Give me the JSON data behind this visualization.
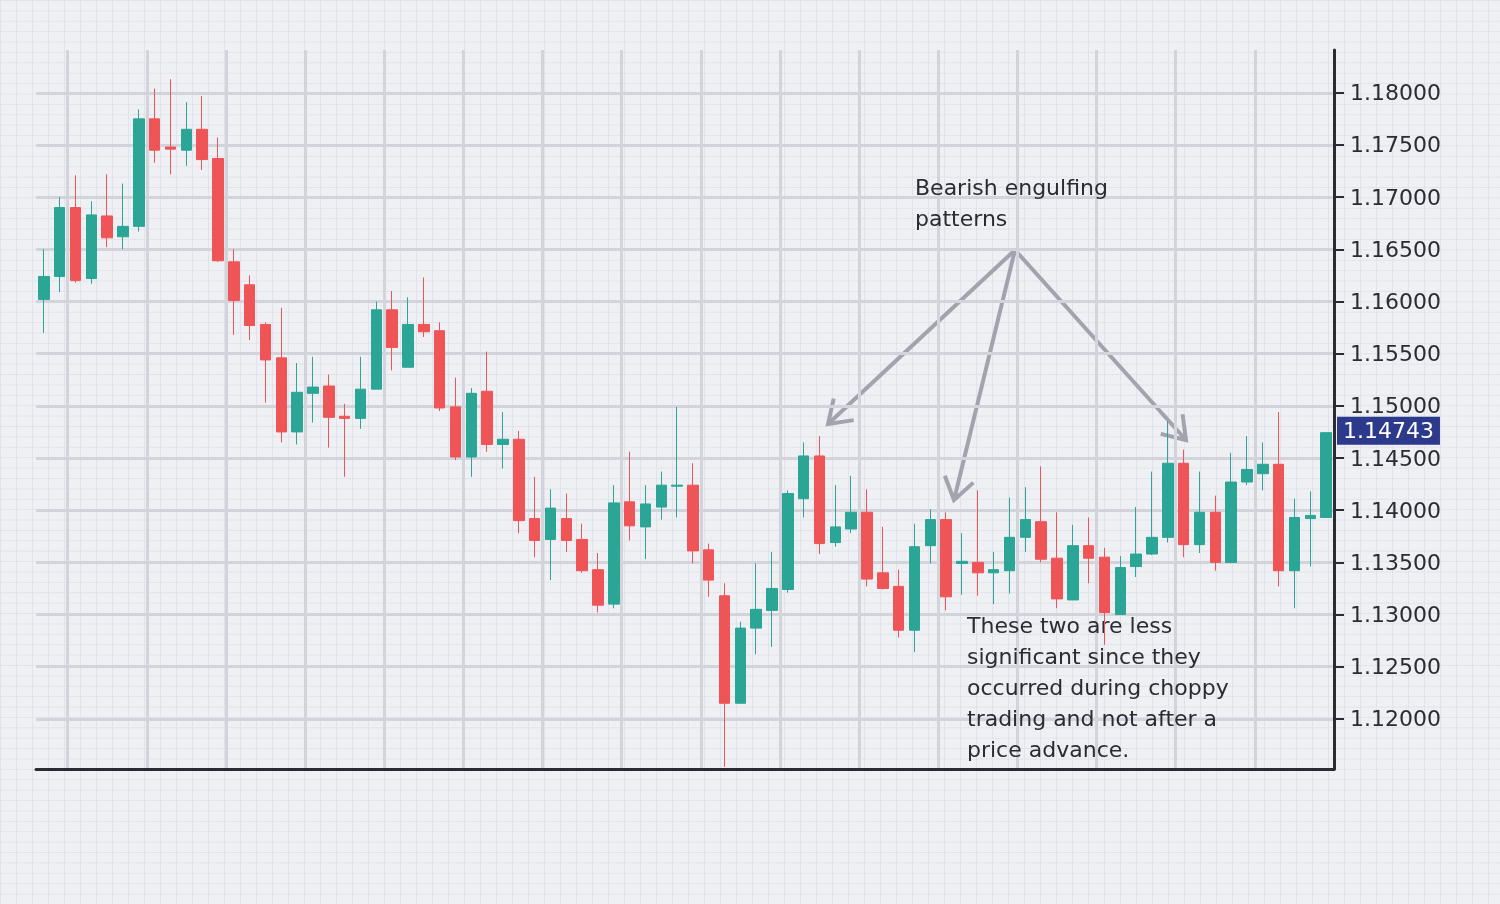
{
  "chart_data": {
    "type": "candlestick",
    "categories": [
      null,
      null,
      null,
      null,
      null,
      null,
      null,
      null,
      null,
      null,
      null,
      null,
      null,
      null,
      null,
      null,
      null,
      null,
      null,
      null,
      null,
      null,
      null,
      null,
      null,
      null,
      null,
      null,
      null,
      null,
      null,
      null,
      null,
      null,
      null,
      null,
      null,
      null,
      null,
      null,
      null,
      null,
      null,
      null,
      null,
      null,
      null,
      null,
      null,
      null,
      null,
      null,
      null,
      null,
      null,
      null,
      null,
      null,
      null,
      null,
      null,
      null,
      null,
      null,
      null,
      null,
      null,
      null,
      null,
      null,
      null,
      null,
      null,
      null,
      null,
      null,
      null,
      null,
      null,
      null,
      null,
      null
    ],
    "ohlc": [
      [
        1.1602,
        1.165,
        1.157,
        1.1624
      ],
      [
        1.1624,
        1.17,
        1.1609,
        1.169
      ],
      [
        1.169,
        1.1721,
        1.1618,
        1.162
      ],
      [
        1.1622,
        1.1696,
        1.1617,
        1.1683
      ],
      [
        1.1682,
        1.1722,
        1.1652,
        1.1661
      ],
      [
        1.1662,
        1.1713,
        1.165,
        1.1672
      ],
      [
        1.1672,
        1.1784,
        1.1667,
        1.1775
      ],
      [
        1.1775,
        1.1804,
        1.1733,
        1.1745
      ],
      [
        1.1748,
        1.1813,
        1.1722,
        1.1746
      ],
      [
        1.1745,
        1.1791,
        1.173,
        1.1765
      ],
      [
        1.1765,
        1.1797,
        1.1726,
        1.1736
      ],
      [
        1.1737,
        1.1757,
        1.1638,
        1.1639
      ],
      [
        1.1638,
        1.165,
        1.1568,
        1.1601
      ],
      [
        1.1616,
        1.1625,
        1.1563,
        1.1577
      ],
      [
        1.1578,
        1.158,
        1.1503,
        1.1544
      ],
      [
        1.1546,
        1.1594,
        1.1465,
        1.1475
      ],
      [
        1.1475,
        1.1541,
        1.1463,
        1.1513
      ],
      [
        1.1512,
        1.1547,
        1.1484,
        1.1518
      ],
      [
        1.1519,
        1.153,
        1.146,
        1.1489
      ],
      [
        1.149,
        1.1502,
        1.1432,
        1.1488
      ],
      [
        1.1488,
        1.1547,
        1.1478,
        1.1516
      ],
      [
        1.1516,
        1.16,
        1.1516,
        1.1592
      ],
      [
        1.1592,
        1.161,
        1.1534,
        1.1556
      ],
      [
        1.1537,
        1.1604,
        1.1537,
        1.1578
      ],
      [
        1.1578,
        1.1623,
        1.1566,
        1.1571
      ],
      [
        1.1572,
        1.158,
        1.1495,
        1.1498
      ],
      [
        1.1499,
        1.1527,
        1.1448,
        1.1451
      ],
      [
        1.1451,
        1.1517,
        1.1432,
        1.1512
      ],
      [
        1.1514,
        1.1552,
        1.1456,
        1.1463
      ],
      [
        1.1463,
        1.1494,
        1.144,
        1.1468
      ],
      [
        1.1468,
        1.1476,
        1.1378,
        1.139
      ],
      [
        1.1392,
        1.1432,
        1.1355,
        1.1371
      ],
      [
        1.1372,
        1.142,
        1.1333,
        1.1402
      ],
      [
        1.1392,
        1.1416,
        1.136,
        1.1371
      ],
      [
        1.1372,
        1.1387,
        1.134,
        1.1342
      ],
      [
        1.1343,
        1.1359,
        1.1302,
        1.1309
      ],
      [
        1.131,
        1.1424,
        1.1306,
        1.1407
      ],
      [
        1.1408,
        1.1456,
        1.1371,
        1.1385
      ],
      [
        1.1384,
        1.1424,
        1.1353,
        1.1406
      ],
      [
        1.1403,
        1.1437,
        1.1391,
        1.1424
      ],
      [
        1.1423,
        1.1499,
        1.1393,
        1.1424
      ],
      [
        1.1424,
        1.1445,
        1.1349,
        1.1361
      ],
      [
        1.1362,
        1.1368,
        1.1317,
        1.1333
      ],
      [
        1.1318,
        1.133,
        1.1154,
        1.1215
      ],
      [
        1.1215,
        1.1293,
        1.1215,
        1.1287
      ],
      [
        1.1287,
        1.1349,
        1.1262,
        1.1305
      ],
      [
        1.1304,
        1.136,
        1.1269,
        1.1325
      ],
      [
        1.1324,
        1.1419,
        1.1321,
        1.1416
      ],
      [
        1.1411,
        1.1465,
        1.1393,
        1.1452
      ],
      [
        1.1452,
        1.1471,
        1.1358,
        1.1368
      ],
      [
        1.1369,
        1.1424,
        1.1365,
        1.1384
      ],
      [
        1.1382,
        1.1433,
        1.1378,
        1.1398
      ],
      [
        1.1398,
        1.142,
        1.1327,
        1.1334
      ],
      [
        1.134,
        1.1384,
        1.1324,
        1.1325
      ],
      [
        1.1327,
        1.1343,
        1.1278,
        1.1285
      ],
      [
        1.1285,
        1.1387,
        1.1264,
        1.1365
      ],
      [
        1.1366,
        1.1401,
        1.1349,
        1.1391
      ],
      [
        1.1391,
        1.1398,
        1.1304,
        1.1317
      ],
      [
        1.1349,
        1.1378,
        1.1319,
        1.1351
      ],
      [
        1.135,
        1.1419,
        1.1318,
        1.134
      ],
      [
        1.134,
        1.136,
        1.131,
        1.1343
      ],
      [
        1.1342,
        1.1412,
        1.132,
        1.1374
      ],
      [
        1.1374,
        1.1422,
        1.136,
        1.1391
      ],
      [
        1.1389,
        1.1442,
        1.135,
        1.1353
      ],
      [
        1.1354,
        1.1398,
        1.1306,
        1.1315
      ],
      [
        1.1314,
        1.1386,
        1.1314,
        1.1366
      ],
      [
        1.1366,
        1.1393,
        1.133,
        1.1354
      ],
      [
        1.1355,
        1.1364,
        1.1271,
        1.1302
      ],
      [
        1.13,
        1.1356,
        1.13,
        1.1345
      ],
      [
        1.1346,
        1.1403,
        1.1336,
        1.1358
      ],
      [
        1.1358,
        1.1437,
        1.1357,
        1.1374
      ],
      [
        1.1374,
        1.1485,
        1.1369,
        1.1445
      ],
      [
        1.1445,
        1.1458,
        1.1355,
        1.1367
      ],
      [
        1.1367,
        1.1437,
        1.1359,
        1.1398
      ],
      [
        1.1398,
        1.1414,
        1.1342,
        1.135
      ],
      [
        1.135,
        1.1455,
        1.135,
        1.1427
      ],
      [
        1.1427,
        1.1471,
        1.1424,
        1.1439
      ],
      [
        1.1435,
        1.1465,
        1.1419,
        1.1444
      ],
      [
        1.1444,
        1.1494,
        1.1327,
        1.1342
      ],
      [
        1.1342,
        1.1411,
        1.1306,
        1.1393
      ],
      [
        1.1392,
        1.1418,
        1.1346,
        1.1395
      ],
      [
        1.1393,
        1.14743,
        1.1393,
        1.14743
      ]
    ],
    "colors": [
      "#2aa596",
      "#2aa596",
      "#ef5456",
      "#2aa596",
      "#ef5456",
      "#2aa596",
      "#2aa596",
      "#ef5456",
      "#ef5456",
      "#2aa596",
      "#ef5456",
      "#ef5456",
      "#ef5456",
      "#ef5456",
      "#ef5456",
      "#ef5456",
      "#2aa596",
      "#2aa596",
      "#ef5456",
      "#ef5456",
      "#2aa596",
      "#2aa596",
      "#ef5456",
      "#2aa596",
      "#ef5456",
      "#ef5456",
      "#ef5456",
      "#2aa596",
      "#ef5456",
      "#2aa596",
      "#ef5456",
      "#ef5456",
      "#2aa596",
      "#ef5456",
      "#ef5456",
      "#ef5456",
      "#2aa596",
      "#ef5456",
      "#2aa596",
      "#2aa596",
      "#2aa596",
      "#ef5456",
      "#ef5456",
      "#ef5456",
      "#2aa596",
      "#2aa596",
      "#2aa596",
      "#2aa596",
      "#2aa596",
      "#ef5456",
      "#2aa596",
      "#2aa596",
      "#ef5456",
      "#ef5456",
      "#ef5456",
      "#2aa596",
      "#2aa596",
      "#ef5456",
      "#2aa596",
      "#ef5456",
      "#2aa596",
      "#2aa596",
      "#2aa596",
      "#ef5456",
      "#ef5456",
      "#2aa596",
      "#ef5456",
      "#ef5456",
      "#2aa596",
      "#2aa596",
      "#2aa596",
      "#2aa596",
      "#ef5456",
      "#2aa596",
      "#ef5456",
      "#2aa596",
      "#2aa596",
      "#2aa596",
      "#ef5456",
      "#2aa596",
      "#2aa596",
      "#2aa596"
    ],
    "ylim": [
      1.1152,
      1.1841
    ],
    "yticks": [
      {
        "value": 1.12,
        "label": "1.12000"
      },
      {
        "value": 1.125,
        "label": "1.12500"
      },
      {
        "value": 1.13,
        "label": "1.13000"
      },
      {
        "value": 1.135,
        "label": "1.13500"
      },
      {
        "value": 1.14,
        "label": "1.14000"
      },
      {
        "value": 1.145,
        "label": "1.14500"
      },
      {
        "value": 1.15,
        "label": "1.15000"
      },
      {
        "value": 1.155,
        "label": "1.15500"
      },
      {
        "value": 1.16,
        "label": "1.16000"
      },
      {
        "value": 1.165,
        "label": "1.16500"
      },
      {
        "value": 1.17,
        "label": "1.17000"
      },
      {
        "value": 1.175,
        "label": "1.17500"
      },
      {
        "value": 1.18,
        "label": "1.18000"
      }
    ],
    "grid": true,
    "annotations": [
      "Bearish engulfing patterns",
      "These two are less significant since they occurred during choppy trading and not after a price advance.",
      "1.14743"
    ]
  }
}
